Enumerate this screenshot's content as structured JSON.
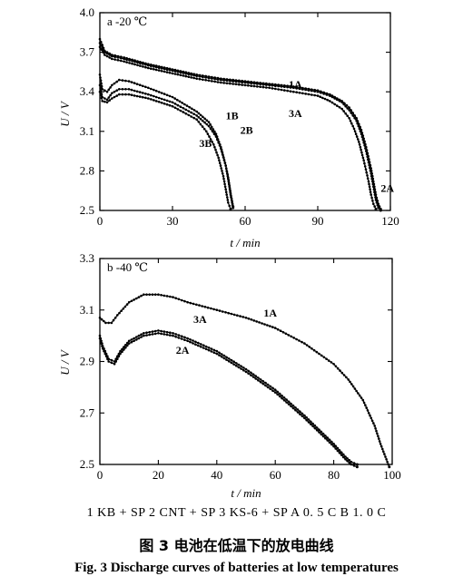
{
  "chart_data": [
    {
      "type": "line",
      "panel_label": "a  -20 ℃",
      "xlabel": "t / min",
      "ylabel": "U / V",
      "xlim": [
        0,
        120
      ],
      "ylim": [
        2.5,
        4.0
      ],
      "xticks": [
        "0",
        "30",
        "60",
        "90",
        "120"
      ],
      "yticks": [
        "2.5",
        "2.8",
        "3.1",
        "3.4",
        "3.7",
        "4.0"
      ],
      "grid": false,
      "series": [
        {
          "name": "1A",
          "x": [
            0,
            2,
            5,
            10,
            20,
            30,
            40,
            50,
            60,
            70,
            80,
            90,
            95,
            100,
            103,
            106,
            108,
            110,
            112,
            113,
            114,
            115,
            116
          ],
          "y": [
            3.77,
            3.7,
            3.67,
            3.65,
            3.6,
            3.56,
            3.52,
            3.49,
            3.47,
            3.45,
            3.43,
            3.4,
            3.37,
            3.32,
            3.26,
            3.18,
            3.08,
            2.95,
            2.78,
            2.68,
            2.58,
            2.52,
            2.5
          ]
        },
        {
          "name": "2A",
          "x": [
            0,
            2,
            5,
            10,
            20,
            30,
            40,
            50,
            60,
            70,
            80,
            90,
            95,
            100,
            103,
            106,
            108,
            110,
            112,
            113,
            114,
            115,
            116
          ],
          "y": [
            3.8,
            3.71,
            3.68,
            3.66,
            3.61,
            3.57,
            3.53,
            3.5,
            3.48,
            3.46,
            3.44,
            3.41,
            3.38,
            3.33,
            3.28,
            3.2,
            3.11,
            2.98,
            2.82,
            2.72,
            2.62,
            2.55,
            2.51
          ]
        },
        {
          "name": "3A",
          "x": [
            0,
            2,
            5,
            10,
            20,
            30,
            40,
            50,
            60,
            70,
            80,
            90,
            95,
            100,
            103,
            105,
            107,
            109,
            111,
            112,
            113,
            114
          ],
          "y": [
            3.74,
            3.68,
            3.65,
            3.63,
            3.58,
            3.54,
            3.5,
            3.47,
            3.45,
            3.43,
            3.4,
            3.37,
            3.33,
            3.27,
            3.2,
            3.12,
            3.02,
            2.88,
            2.72,
            2.62,
            2.55,
            2.51
          ]
        },
        {
          "name": "1B",
          "x": [
            0,
            1,
            3,
            5,
            8,
            12,
            20,
            30,
            40,
            45,
            48,
            50,
            52,
            53,
            54,
            55
          ],
          "y": [
            3.53,
            3.42,
            3.4,
            3.45,
            3.49,
            3.48,
            3.43,
            3.36,
            3.25,
            3.17,
            3.08,
            2.98,
            2.84,
            2.74,
            2.62,
            2.52
          ]
        },
        {
          "name": "2B",
          "x": [
            0,
            1,
            3,
            5,
            8,
            12,
            20,
            30,
            40,
            45,
            48,
            50,
            52,
            53,
            54,
            55
          ],
          "y": [
            3.45,
            3.36,
            3.34,
            3.39,
            3.42,
            3.42,
            3.38,
            3.32,
            3.22,
            3.14,
            3.06,
            2.97,
            2.84,
            2.75,
            2.63,
            2.53
          ]
        },
        {
          "name": "3B",
          "x": [
            0,
            1,
            3,
            5,
            8,
            12,
            20,
            30,
            40,
            44,
            47,
            49,
            51,
            52,
            53,
            54
          ],
          "y": [
            3.4,
            3.33,
            3.32,
            3.35,
            3.38,
            3.38,
            3.35,
            3.29,
            3.19,
            3.1,
            3.0,
            2.9,
            2.76,
            2.66,
            2.56,
            2.51
          ]
        }
      ],
      "curve_labels": [
        {
          "text": "1A",
          "x": 78,
          "y": 3.43
        },
        {
          "text": "3A",
          "x": 78,
          "y": 3.21
        },
        {
          "text": "2A",
          "x": 116,
          "y": 2.64
        },
        {
          "text": "1B",
          "x": 52,
          "y": 3.19
        },
        {
          "text": "2B",
          "x": 58,
          "y": 3.08
        },
        {
          "text": "3B",
          "x": 41,
          "y": 2.98
        }
      ]
    },
    {
      "type": "line",
      "panel_label": "b  -40 ℃",
      "xlabel": "t / min",
      "ylabel": "U / V",
      "xlim": [
        0,
        100
      ],
      "ylim": [
        2.5,
        3.3
      ],
      "xticks": [
        "0",
        "20",
        "40",
        "60",
        "80",
        "100"
      ],
      "yticks": [
        "2.5",
        "2.7",
        "2.9",
        "3.1",
        "3.3"
      ],
      "grid": false,
      "series": [
        {
          "name": "1A",
          "x": [
            0,
            2,
            4,
            6,
            10,
            15,
            20,
            25,
            30,
            40,
            50,
            60,
            70,
            80,
            85,
            90,
            94,
            96,
            98,
            99
          ],
          "y": [
            3.07,
            3.05,
            3.05,
            3.08,
            3.13,
            3.16,
            3.16,
            3.15,
            3.13,
            3.1,
            3.07,
            3.03,
            2.97,
            2.89,
            2.83,
            2.75,
            2.65,
            2.58,
            2.52,
            2.49
          ]
        },
        {
          "name": "2A",
          "x": [
            0,
            1,
            3,
            5,
            7,
            10,
            15,
            20,
            25,
            30,
            40,
            50,
            60,
            70,
            80,
            84,
            86,
            88
          ],
          "y": [
            2.99,
            2.95,
            2.9,
            2.89,
            2.93,
            2.97,
            3.0,
            3.01,
            3.0,
            2.98,
            2.93,
            2.86,
            2.78,
            2.68,
            2.57,
            2.52,
            2.5,
            2.49
          ]
        },
        {
          "name": "3A",
          "x": [
            0,
            1,
            3,
            5,
            7,
            10,
            15,
            20,
            25,
            30,
            40,
            50,
            60,
            70,
            80,
            84,
            86,
            88
          ],
          "y": [
            3.0,
            2.96,
            2.91,
            2.9,
            2.94,
            2.98,
            3.01,
            3.02,
            3.01,
            2.99,
            2.94,
            2.87,
            2.79,
            2.69,
            2.58,
            2.53,
            2.51,
            2.5
          ]
        }
      ],
      "curve_labels": [
        {
          "text": "1A",
          "x": 56,
          "y": 3.075
        },
        {
          "text": "3A",
          "x": 32,
          "y": 3.05
        },
        {
          "text": "2A",
          "x": 26,
          "y": 2.93
        }
      ]
    }
  ],
  "legend_text": "1  KB + SP    2  CNT + SP    3  KS-6 + SP    A 0. 5 C    B 1. 0 C",
  "caption_cn": "图 3    电池在低温下的放电曲线",
  "caption_en": "Fig. 3    Discharge curves of batteries at low temperatures"
}
